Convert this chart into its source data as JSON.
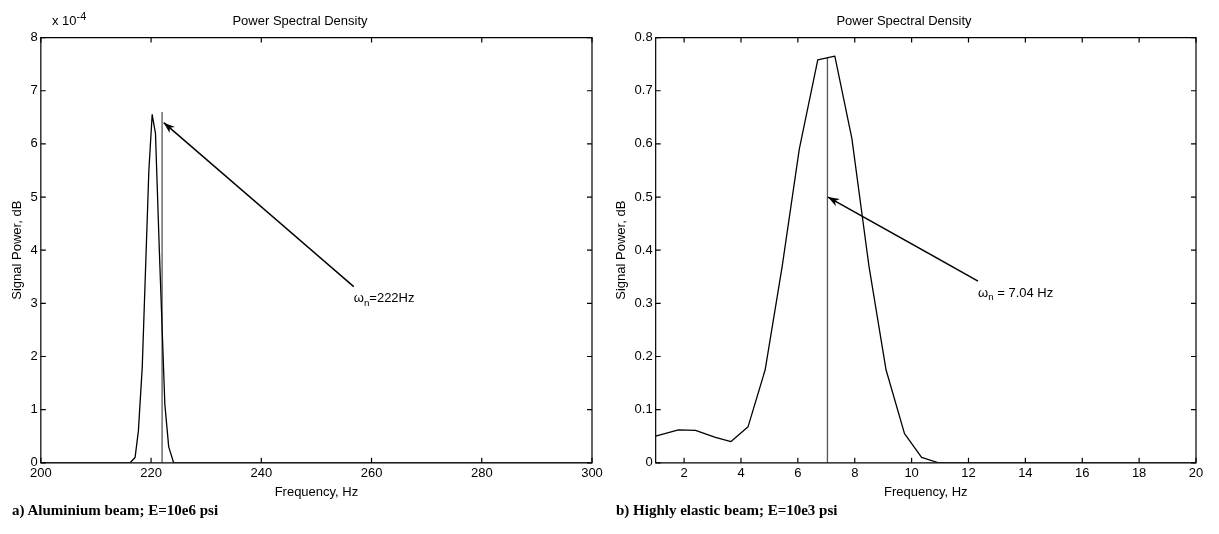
{
  "chart_data": [
    {
      "type": "line",
      "title": "Power Spectral Density",
      "xlabel": "Frequency, Hz",
      "ylabel": "Signal Power, dB",
      "xlim": [
        200,
        300
      ],
      "xticks": [
        200,
        220,
        240,
        260,
        280,
        300
      ],
      "ylim": [
        0,
        8
      ],
      "yticks": [
        0,
        1,
        2,
        3,
        4,
        5,
        6,
        7,
        8
      ],
      "series": [
        {
          "color": "#000000",
          "x": [
            200,
            216.2,
            217.1,
            217.7,
            218.4,
            219.6,
            220.2,
            220.8,
            221.5,
            222.5,
            223.2,
            224.1,
            300
          ],
          "values": [
            0,
            0,
            0.1,
            0.6,
            1.8,
            5.5,
            6.55,
            6.2,
            4.0,
            1.1,
            0.3,
            0,
            0
          ]
        },
        {
          "color": "#555555",
          "x": [
            222,
            222
          ],
          "values": [
            0,
            6.6
          ]
        }
      ],
      "annotations": [
        "x 10$^{-4}$",
        {
          "text": "ω$_{n}$=222Hz",
          "x": 222.3,
          "y": 6.4
        },
        "a) Aluminium beam; E=10e6 psi"
      ]
    },
    {
      "type": "line",
      "title": "Power Spectral Density",
      "xlabel": "Frequency, Hz",
      "ylabel": "Signal Power, dB",
      "xlim": [
        1,
        20
      ],
      "xticks": [
        2,
        4,
        6,
        8,
        10,
        12,
        14,
        16,
        18,
        20
      ],
      "ylim": [
        0,
        0.8
      ],
      "yticks": [
        0,
        0.1,
        0.2,
        0.3,
        0.4,
        0.5,
        0.6,
        0.7,
        0.8
      ],
      "series": [
        {
          "color": "#000000",
          "x": [
            1.0,
            1.8,
            2.4,
            3.1,
            3.65,
            4.25,
            4.85,
            5.45,
            6.05,
            6.7,
            7.3,
            7.9,
            8.5,
            9.1,
            9.75,
            10.35,
            10.95,
            20
          ],
          "values": [
            0.05,
            0.062,
            0.061,
            0.048,
            0.04,
            0.068,
            0.175,
            0.37,
            0.59,
            0.758,
            0.765,
            0.61,
            0.37,
            0.175,
            0.055,
            0.01,
            0,
            0
          ]
        },
        {
          "color": "#555555",
          "x": [
            7.04,
            7.04
          ],
          "values": [
            0,
            0.762
          ]
        }
      ],
      "annotations": [
        {
          "text": "ω$_{n}$ = 7.04 Hz",
          "x": 7.06,
          "y": 0.5
        },
        "b) Highly elastic beam; E=10e3 psi"
      ]
    }
  ]
}
